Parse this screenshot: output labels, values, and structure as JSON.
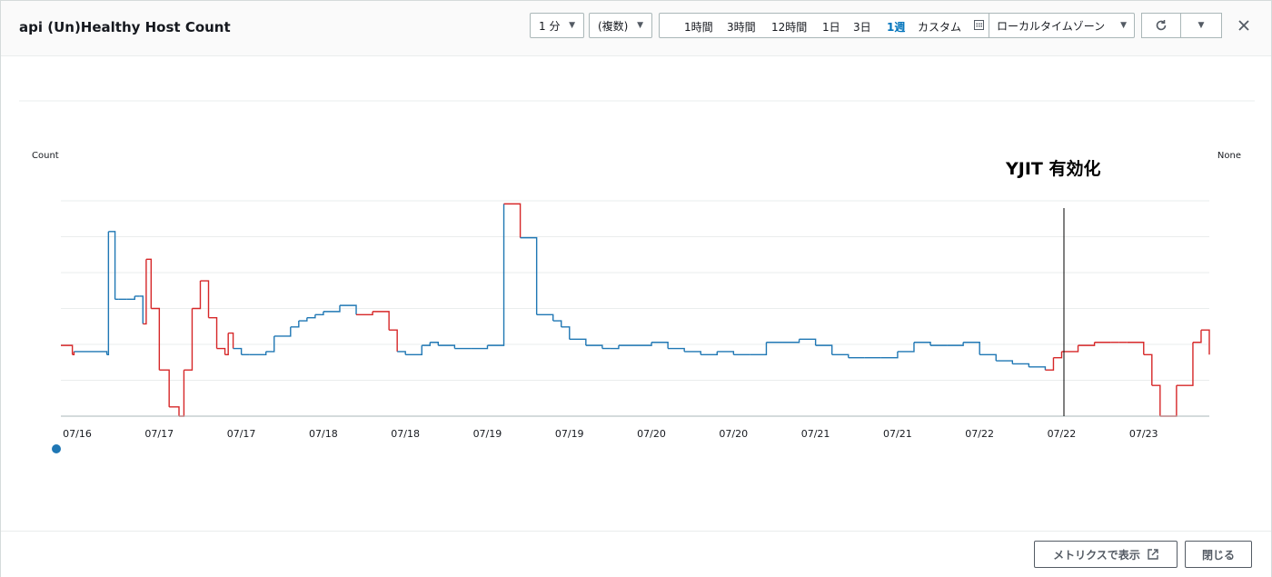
{
  "window": {
    "title": "api (Un)Healthy Host Count"
  },
  "toolbar": {
    "period_label": "1 分",
    "stat_label": "(複数)",
    "ranges": [
      "1時間",
      "3時間",
      "12時間",
      "1日",
      "3日",
      "1週",
      "カスタム"
    ],
    "active_range": "1週",
    "timezone_label": "ローカルタイムゾーン"
  },
  "icons": {
    "refresh": "refresh-icon",
    "dropdown": "caret-down-icon",
    "close": "close-icon",
    "calendar": "calendar-icon",
    "external": "external-link-icon"
  },
  "footer": {
    "view_metrics_label": "メトリクスで表示",
    "close_label": "閉じる"
  },
  "colors": {
    "healthy": "#1f77b4",
    "unhealthy": "#d62728",
    "active": "#0073bb"
  },
  "chart_data": {
    "type": "line",
    "title": "",
    "ylabel": "Count",
    "y2label": "None",
    "annotation": "YJIT 有効化",
    "annotation_x": 7.1,
    "tick_labels": [
      "07/16",
      "07/17",
      "07/17",
      "07/18",
      "07/18",
      "07/19",
      "07/19",
      "07/20",
      "07/20",
      "07/21",
      "07/21",
      "07/22",
      "07/22",
      "07/23"
    ],
    "tick_positions": [
      0.0,
      0.5,
      1.0,
      1.5,
      2.0,
      2.5,
      3.0,
      3.5,
      4.0,
      4.5,
      5.0,
      5.5,
      6.0,
      6.5
    ],
    "xlim": [
      0.0,
      7.0
    ],
    "ylim": [
      0,
      7
    ],
    "grid": true,
    "series": [
      {
        "color": "#d62728",
        "x": [
          0.0,
          0.07,
          0.08,
          0.28,
          0.29,
          0.33,
          0.35,
          0.4,
          0.45,
          0.48,
          0.5,
          0.52,
          0.55,
          0.6,
          0.66,
          0.72,
          0.75,
          0.8,
          0.85,
          0.9,
          0.95,
          1.0,
          1.02,
          1.05,
          1.1,
          1.15,
          1.25,
          1.3,
          1.4,
          1.45,
          1.5,
          1.55,
          1.6,
          1.7,
          1.8,
          1.9,
          2.0,
          2.05,
          2.1,
          2.2,
          2.25,
          2.3,
          2.4,
          2.5,
          2.6,
          2.7,
          2.8,
          2.9,
          3.0,
          3.05,
          3.1,
          3.2,
          3.3,
          3.35,
          3.4,
          3.5,
          3.6,
          3.7,
          3.8,
          3.9,
          4.0,
          4.1,
          4.2,
          4.3,
          4.4,
          4.5,
          4.6,
          4.7,
          4.8,
          4.9,
          5.0,
          5.1,
          5.2,
          5.3,
          5.4,
          5.5,
          5.6,
          5.7,
          5.8,
          5.9,
          6.0,
          6.05,
          6.1,
          6.2,
          6.3,
          6.4,
          6.45,
          6.5,
          6.6,
          6.65,
          6.7,
          6.8,
          6.9,
          6.95,
          7.0
        ],
        "y": [
          2.3,
          2.0,
          2.1,
          2.0,
          6.0,
          3.8,
          3.8,
          3.8,
          3.9,
          3.9,
          3.0,
          5.1,
          3.5,
          1.5,
          0.3,
          0.0,
          1.5,
          3.5,
          4.4,
          3.2,
          2.2,
          2.0,
          2.7,
          2.2,
          2.0,
          2.0,
          2.1,
          2.6,
          2.9,
          3.1,
          3.2,
          3.3,
          3.4,
          3.6,
          3.3,
          3.4,
          2.8,
          2.1,
          2.0,
          2.3,
          2.4,
          2.3,
          2.2,
          2.2,
          2.3,
          6.9,
          5.8,
          3.3,
          3.1,
          2.9,
          2.5,
          2.3,
          2.2,
          2.2,
          2.3,
          2.3,
          2.4,
          2.2,
          2.1,
          2.0,
          2.1,
          2.0,
          2.0,
          2.4,
          2.4,
          2.5,
          2.3,
          2.0,
          1.9,
          1.9,
          1.9,
          2.1,
          2.4,
          2.3,
          2.3,
          2.4,
          2.0,
          1.8,
          1.7,
          1.6,
          1.5,
          1.9,
          2.1,
          2.3,
          2.4,
          2.4,
          2.4,
          2.4,
          2.0,
          1.0,
          0.0,
          1.0,
          2.4,
          2.8,
          2.0
        ]
      }
    ]
  }
}
